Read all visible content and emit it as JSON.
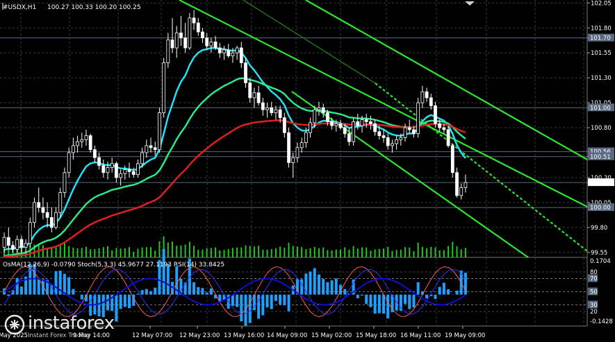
{
  "header": {
    "symbol": "#USDX,H1",
    "ohlc": "100.27 100.33 100.20 100.25",
    "oscillators": "OsMA(12,26,9) -0.0790   Stoch(5,3,3) 45.9677 27.1193   RSI(14) 33.8425"
  },
  "logo": {
    "name": "instaforex",
    "tagline": "Instant Forex Trading"
  },
  "colors": {
    "background": "#000000",
    "grid": "#3a3a3a",
    "bull": "#ffffff",
    "bear": "#ffffff",
    "ema_fast": "#26e0f5",
    "ema_mid": "#2ee88a",
    "ema_slow": "#e02020",
    "channel": "#2ee62e",
    "level_line": "#5a6a80",
    "price_box": "#ffffff",
    "volume": "#23c423",
    "osma": "#1ea0ff",
    "rsi": "#1010cc",
    "stoch_main": "#ff5a5a",
    "stoch_signal": "#3030ff"
  },
  "chart_data": {
    "type": "candlestick",
    "price_axis": [
      "102.05",
      "101.80",
      "101.70",
      "101.55",
      "101.30",
      "101.05",
      "101.00",
      "100.80",
      "100.56",
      "100.51",
      "100.30",
      "100.25",
      "100.05",
      "100.00",
      "99.80",
      "99.55"
    ],
    "price_range": [
      99.5,
      102.08
    ],
    "highlighted_levels": [
      "101.70",
      "101.00",
      "100.56",
      "100.51",
      "100.25",
      "100.00"
    ],
    "current_price": "100.25",
    "time_labels": [
      "7 May 2025",
      "9 May 14:00",
      "12 May 07:00",
      "12 May 23:00",
      "13 May 16:00",
      "14 May 09:00",
      "15 May 02:00",
      "15 May 18:00",
      "16 May 11:00",
      "19 May 09:00"
    ],
    "candles": [
      [
        99.6,
        99.75,
        99.55,
        99.7
      ],
      [
        99.7,
        99.8,
        99.58,
        99.62
      ],
      [
        99.62,
        99.66,
        99.55,
        99.58
      ],
      [
        99.58,
        99.72,
        99.55,
        99.68
      ],
      [
        99.68,
        99.72,
        99.55,
        99.6
      ],
      [
        99.6,
        99.68,
        99.55,
        99.64
      ],
      [
        99.64,
        99.9,
        99.6,
        99.85
      ],
      [
        99.85,
        100.1,
        99.8,
        100.05
      ],
      [
        100.05,
        100.2,
        99.95,
        100.0
      ],
      [
        100.0,
        100.1,
        99.88,
        99.95
      ],
      [
        99.95,
        100.05,
        99.8,
        99.9
      ],
      [
        99.9,
        100.0,
        99.75,
        99.8
      ],
      [
        99.8,
        100.0,
        99.78,
        99.95
      ],
      [
        99.95,
        100.2,
        99.9,
        100.15
      ],
      [
        100.15,
        100.4,
        100.1,
        100.35
      ],
      [
        100.35,
        100.6,
        100.3,
        100.55
      ],
      [
        100.55,
        100.7,
        100.48,
        100.62
      ],
      [
        100.62,
        100.72,
        100.55,
        100.66
      ],
      [
        100.66,
        100.75,
        100.6,
        100.68
      ],
      [
        100.68,
        100.78,
        100.62,
        100.72
      ],
      [
        100.72,
        100.74,
        100.55,
        100.58
      ],
      [
        100.58,
        100.62,
        100.45,
        100.5
      ],
      [
        100.5,
        100.55,
        100.38,
        100.42
      ],
      [
        100.42,
        100.48,
        100.3,
        100.35
      ],
      [
        100.35,
        100.46,
        100.28,
        100.4
      ],
      [
        100.4,
        100.5,
        100.35,
        100.44
      ],
      [
        100.44,
        100.46,
        100.25,
        100.3
      ],
      [
        100.3,
        100.38,
        100.22,
        100.34
      ],
      [
        100.34,
        100.42,
        100.28,
        100.38
      ],
      [
        100.38,
        100.45,
        100.3,
        100.36
      ],
      [
        100.36,
        100.4,
        100.3,
        100.33
      ],
      [
        100.33,
        100.48,
        100.3,
        100.44
      ],
      [
        100.44,
        100.6,
        100.4,
        100.55
      ],
      [
        100.55,
        100.68,
        100.5,
        100.62
      ],
      [
        100.62,
        100.7,
        100.55,
        100.6
      ],
      [
        100.6,
        100.66,
        100.52,
        100.58
      ],
      [
        100.58,
        101.0,
        100.55,
        100.95
      ],
      [
        100.95,
        101.5,
        100.9,
        101.45
      ],
      [
        101.45,
        101.75,
        101.4,
        101.68
      ],
      [
        101.68,
        101.9,
        101.55,
        101.6
      ],
      [
        101.6,
        101.82,
        101.5,
        101.75
      ],
      [
        101.75,
        101.92,
        101.62,
        101.7
      ],
      [
        101.7,
        101.85,
        101.55,
        101.6
      ],
      [
        101.6,
        101.95,
        101.58,
        101.9
      ],
      [
        101.9,
        101.98,
        101.78,
        101.85
      ],
      [
        101.85,
        101.9,
        101.72,
        101.76
      ],
      [
        101.76,
        101.8,
        101.65,
        101.7
      ],
      [
        101.7,
        101.75,
        101.58,
        101.62
      ],
      [
        101.62,
        101.7,
        101.55,
        101.66
      ],
      [
        101.66,
        101.72,
        101.58,
        101.6
      ],
      [
        101.6,
        101.65,
        101.5,
        101.55
      ],
      [
        101.55,
        101.62,
        101.48,
        101.58
      ],
      [
        101.58,
        101.64,
        101.5,
        101.52
      ],
      [
        101.52,
        101.6,
        101.45,
        101.55
      ],
      [
        101.55,
        101.62,
        101.48,
        101.6
      ],
      [
        101.6,
        101.66,
        101.4,
        101.45
      ],
      [
        101.45,
        101.5,
        101.2,
        101.25
      ],
      [
        101.25,
        101.3,
        101.05,
        101.1
      ],
      [
        101.1,
        101.2,
        101.0,
        101.15
      ],
      [
        101.15,
        101.22,
        101.02,
        101.05
      ],
      [
        101.05,
        101.1,
        100.92,
        100.98
      ],
      [
        100.98,
        101.05,
        100.9,
        101.0
      ],
      [
        101.0,
        101.06,
        100.92,
        100.95
      ],
      [
        100.95,
        101.02,
        100.88,
        100.98
      ],
      [
        100.98,
        101.02,
        100.85,
        100.9
      ],
      [
        100.9,
        100.95,
        100.7,
        100.75
      ],
      [
        100.75,
        100.8,
        100.4,
        100.45
      ],
      [
        100.45,
        100.55,
        100.3,
        100.5
      ],
      [
        100.5,
        100.65,
        100.45,
        100.6
      ],
      [
        100.6,
        100.7,
        100.55,
        100.65
      ],
      [
        100.65,
        100.8,
        100.6,
        100.75
      ],
      [
        100.75,
        100.9,
        100.7,
        100.85
      ],
      [
        100.85,
        101.02,
        100.8,
        100.98
      ],
      [
        100.98,
        101.06,
        100.92,
        101.0
      ],
      [
        101.0,
        101.04,
        100.9,
        100.95
      ],
      [
        100.95,
        100.98,
        100.82,
        100.86
      ],
      [
        100.86,
        100.9,
        100.78,
        100.82
      ],
      [
        100.82,
        100.88,
        100.76,
        100.84
      ],
      [
        100.84,
        100.88,
        100.78,
        100.8
      ],
      [
        100.8,
        100.84,
        100.7,
        100.74
      ],
      [
        100.74,
        100.8,
        100.62,
        100.66
      ],
      [
        100.66,
        100.9,
        100.62,
        100.86
      ],
      [
        100.86,
        100.94,
        100.78,
        100.82
      ],
      [
        100.82,
        100.92,
        100.75,
        100.88
      ],
      [
        100.88,
        100.94,
        100.8,
        100.86
      ],
      [
        100.86,
        100.92,
        100.78,
        100.84
      ],
      [
        100.84,
        100.88,
        100.72,
        100.76
      ],
      [
        100.76,
        100.82,
        100.68,
        100.72
      ],
      [
        100.72,
        100.78,
        100.65,
        100.7
      ],
      [
        100.7,
        100.74,
        100.58,
        100.62
      ],
      [
        100.62,
        100.68,
        100.55,
        100.64
      ],
      [
        100.64,
        100.72,
        100.58,
        100.68
      ],
      [
        100.68,
        100.74,
        100.62,
        100.7
      ],
      [
        100.7,
        100.84,
        100.66,
        100.8
      ],
      [
        100.8,
        100.88,
        100.74,
        100.78
      ],
      [
        100.78,
        100.82,
        100.7,
        100.74
      ],
      [
        100.74,
        101.1,
        100.7,
        101.05
      ],
      [
        101.05,
        101.22,
        101.0,
        101.16
      ],
      [
        101.16,
        101.2,
        101.06,
        101.1
      ],
      [
        101.1,
        101.14,
        100.98,
        101.02
      ],
      [
        101.02,
        101.06,
        100.8,
        100.84
      ],
      [
        100.84,
        100.88,
        100.76,
        100.8
      ],
      [
        100.8,
        100.84,
        100.74,
        100.78
      ],
      [
        100.78,
        100.82,
        100.6,
        100.62
      ],
      [
        100.62,
        100.64,
        100.3,
        100.35
      ],
      [
        100.35,
        100.4,
        100.1,
        100.12
      ],
      [
        100.12,
        100.24,
        100.08,
        100.2
      ],
      [
        100.2,
        100.33,
        100.15,
        100.25
      ]
    ],
    "overlays": [
      {
        "kind": "ema",
        "period_label": "fast",
        "color": "#26e0f5"
      },
      {
        "kind": "ema",
        "period_label": "mid",
        "color": "#2ee88a"
      },
      {
        "kind": "ema",
        "period_label": "slow",
        "color": "#e02020"
      }
    ],
    "sub_panel": {
      "indicators": [
        "OsMA(12,26,9)",
        "Stoch(5,3,3)",
        "RSI(14)"
      ],
      "osma_value": "-0.0790",
      "stoch_main": "45.9677",
      "stoch_signal": "27.1193",
      "rsi_value": "33.8425",
      "right_axis": [
        "0.1704",
        "80",
        "70",
        "50",
        "30",
        "20",
        "-0.1428"
      ],
      "level_markers": [
        "70",
        "50",
        "30"
      ],
      "range": [
        -0.1428,
        0.1704
      ]
    }
  }
}
